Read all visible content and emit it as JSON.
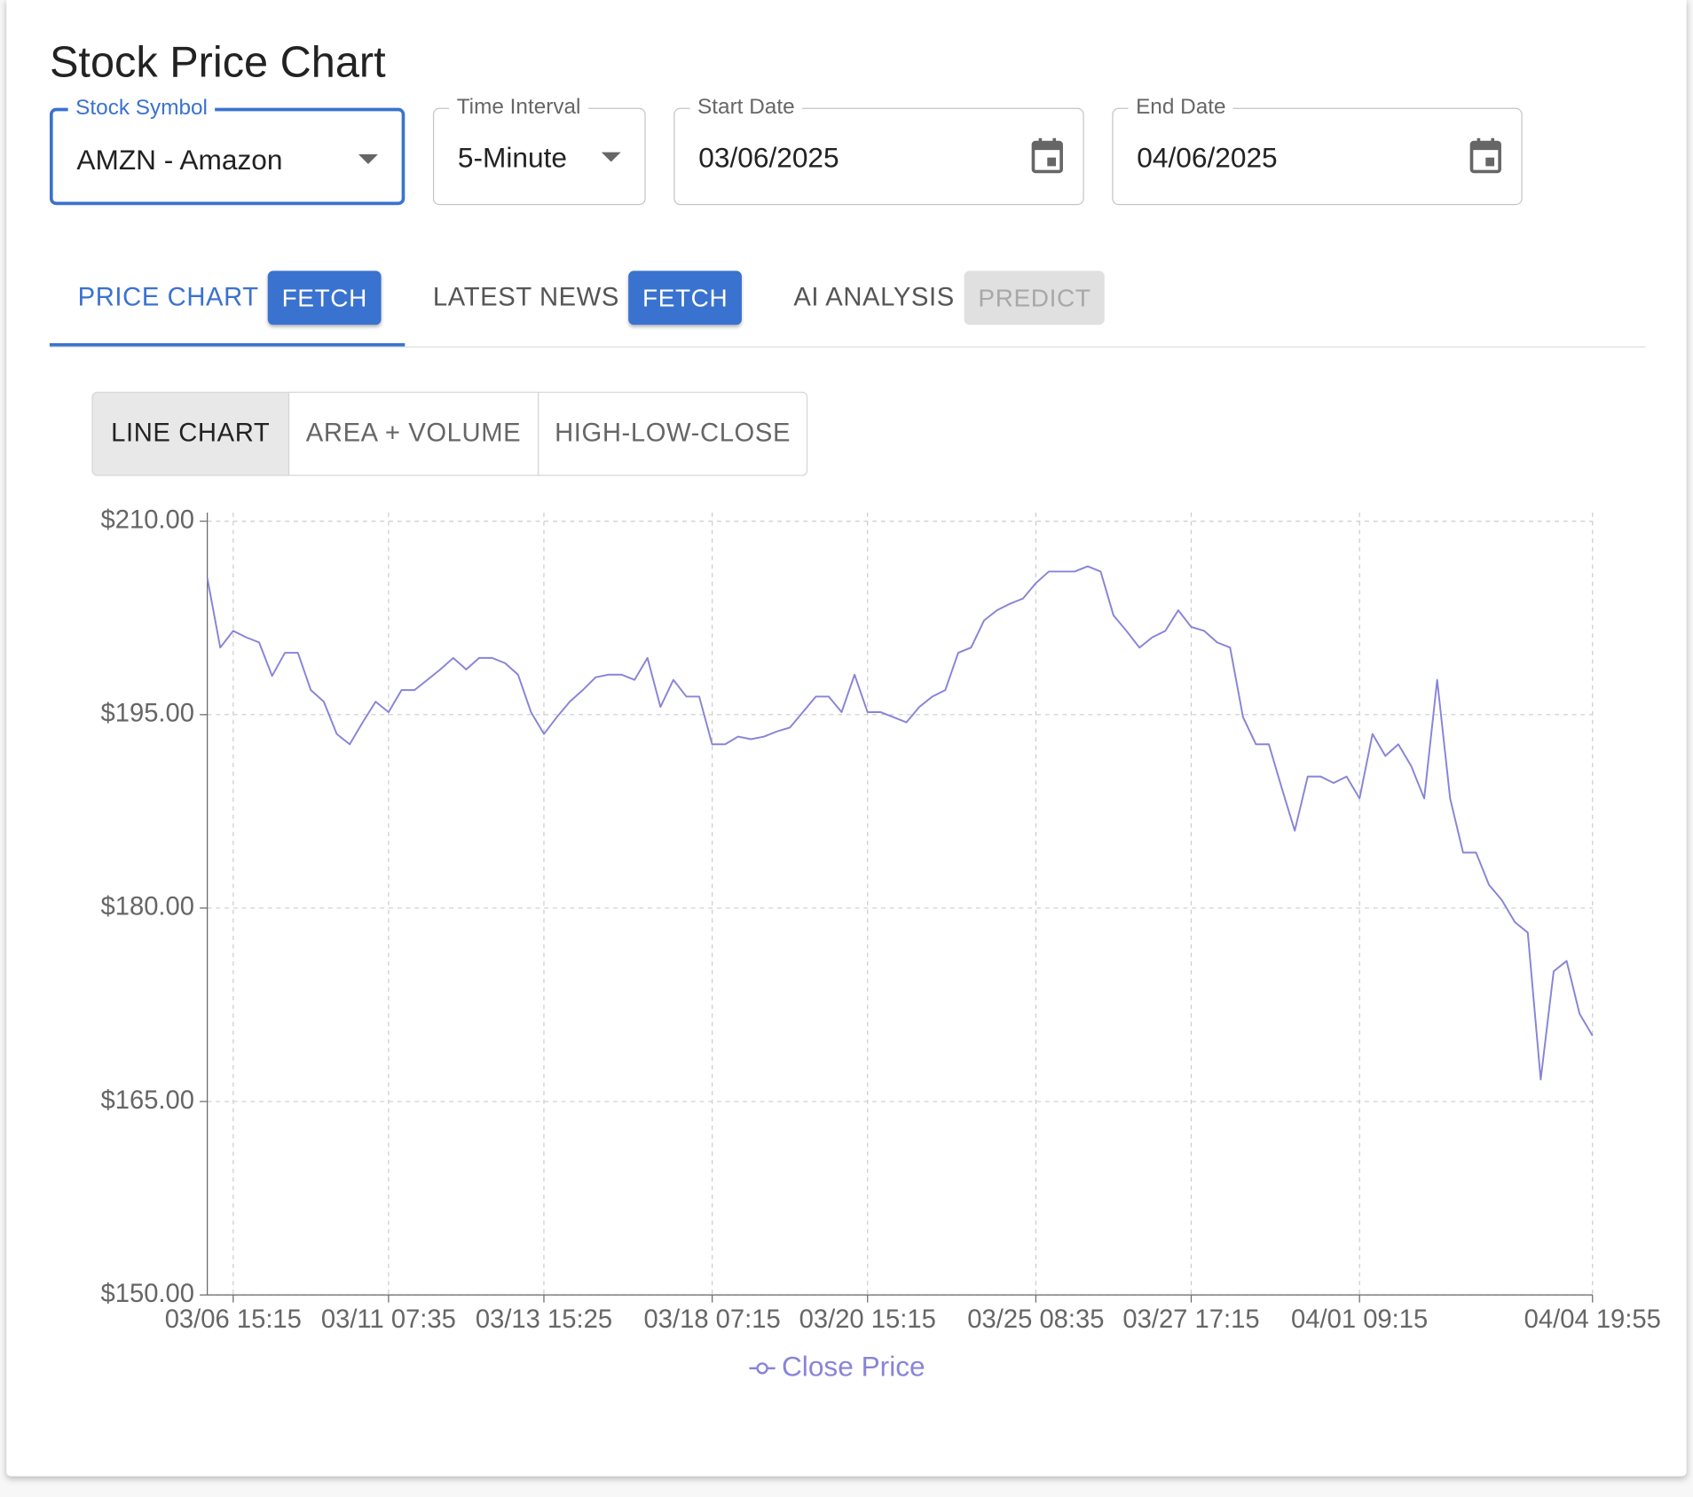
{
  "page_title": "Stock Price Chart",
  "filters": [
    {
      "label": "Stock Symbol",
      "value": "AMZN - Amazon"
    },
    {
      "label": "Time Interval",
      "value": "5-Minute"
    },
    {
      "label": "Start Date",
      "value": "03/06/2025"
    },
    {
      "label": "End Date",
      "value": "04/06/2025"
    }
  ],
  "tabs": [
    {
      "label": "PRICE CHART",
      "button": "FETCH"
    },
    {
      "label": "LATEST NEWS",
      "button": "FETCH"
    },
    {
      "label": "AI ANALYSIS",
      "button": "PREDICT"
    }
  ],
  "chart_views": [
    "LINE CHART",
    "AREA + VOLUME",
    "HIGH-LOW-CLOSE"
  ],
  "chart_data": {
    "type": "line",
    "categories": [
      null,
      null,
      "03/06 15:15",
      null,
      null,
      null,
      null,
      null,
      null,
      null,
      null,
      null,
      null,
      null,
      "03/11 07:35",
      null,
      null,
      null,
      null,
      null,
      null,
      null,
      null,
      null,
      null,
      null,
      "03/13 15:25",
      null,
      null,
      null,
      null,
      null,
      null,
      null,
      null,
      null,
      null,
      null,
      null,
      "03/18 07:15",
      null,
      null,
      null,
      null,
      null,
      null,
      null,
      null,
      null,
      null,
      null,
      "03/20 15:15",
      null,
      null,
      null,
      null,
      null,
      null,
      null,
      null,
      null,
      null,
      null,
      null,
      "03/25 08:35",
      null,
      null,
      null,
      null,
      null,
      null,
      null,
      null,
      null,
      null,
      null,
      "03/27 17:15",
      null,
      null,
      null,
      null,
      null,
      null,
      null,
      null,
      null,
      null,
      null,
      null,
      "04/01 09:15",
      null,
      null,
      null,
      null,
      null,
      null,
      null,
      null,
      null,
      null,
      null,
      null,
      null,
      null,
      null,
      null,
      null,
      "04/04 19:55"
    ],
    "series": [
      {
        "name": "Close Price",
        "color": "#8884d8",
        "values": [
          205.6,
          200.2,
          201.5,
          201,
          200.6,
          198,
          199.8,
          199.8,
          196.9,
          196,
          193.5,
          192.7,
          194.4,
          196,
          195.2,
          196.9,
          196.9,
          197.7,
          198.5,
          199.4,
          198.5,
          199.4,
          199.4,
          199,
          198.1,
          195.2,
          193.5,
          194.8,
          196,
          196.9,
          197.9,
          198.1,
          198.1,
          197.7,
          199.4,
          195.6,
          197.7,
          196.4,
          196.4,
          192.7,
          192.7,
          193.3,
          193.1,
          193.3,
          193.7,
          194,
          195.2,
          196.4,
          196.4,
          195.2,
          198.1,
          195.2,
          195.2,
          194.8,
          194.4,
          195.6,
          196.4,
          196.9,
          199.8,
          200.2,
          202.3,
          203.1,
          203.6,
          204,
          205.2,
          206.1,
          206.1,
          206.1,
          206.5,
          206.1,
          202.7,
          201.5,
          200.2,
          201,
          201.5,
          203.1,
          201.8,
          201.5,
          200.6,
          200.2,
          194.8,
          192.7,
          192.7,
          189.3,
          186,
          190.2,
          190.2,
          189.7,
          190.2,
          188.5,
          193.5,
          191.8,
          192.7,
          191,
          188.5,
          197.7,
          188.5,
          184.3,
          184.3,
          181.8,
          180.6,
          178.9,
          178.1,
          166.7,
          175.1,
          175.9,
          171.8,
          170.1
        ]
      }
    ],
    "ylim": [
      150,
      210
    ],
    "yticks": [
      {
        "value": 150,
        "label": "$150.00"
      },
      {
        "value": 165,
        "label": "$165.00"
      },
      {
        "value": 180,
        "label": "$180.00"
      },
      {
        "value": 195,
        "label": "$195.00"
      },
      {
        "value": 210,
        "label": "$210.00"
      }
    ],
    "grid": true
  }
}
